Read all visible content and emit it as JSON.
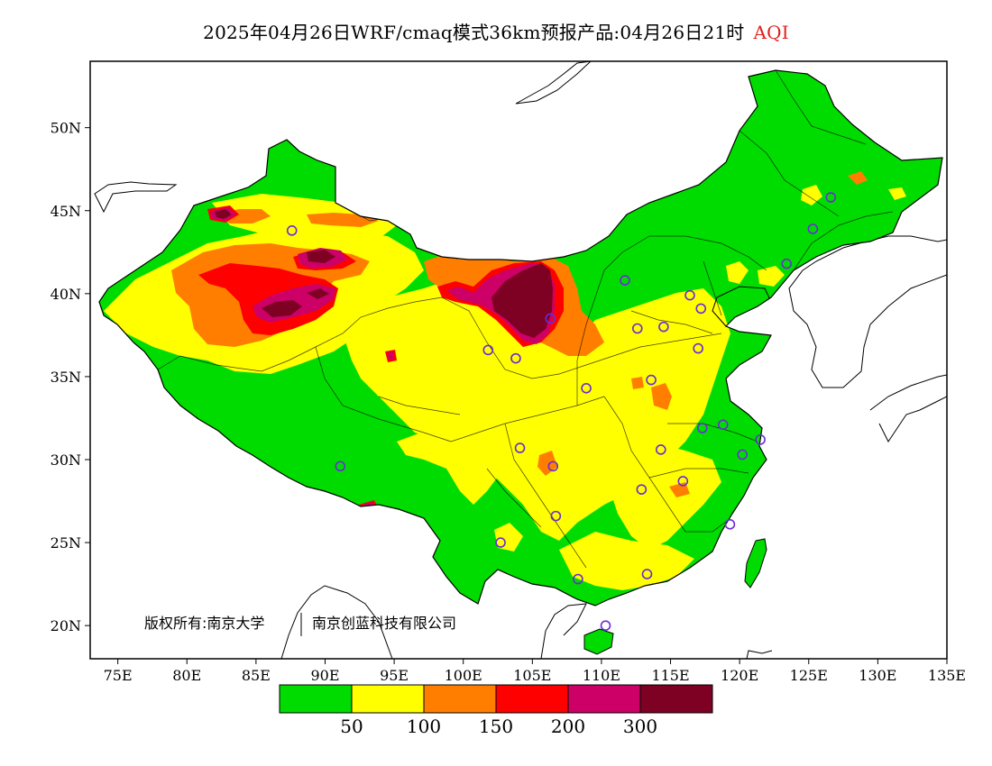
{
  "title": {
    "main": "2025年04月26日WRF/cmaq模式36km预报产品:04月26日21时",
    "variable": "AQI",
    "variable_color": "#e0201b"
  },
  "copyright": {
    "owner_a": "版权所有:南京大学",
    "owner_b": "南京创蓝科技有限公司"
  },
  "axes": {
    "lon_ticks": [
      "75E",
      "80E",
      "85E",
      "90E",
      "95E",
      "100E",
      "105E",
      "110E",
      "115E",
      "120E",
      "125E",
      "130E",
      "135E"
    ],
    "lat_ticks": [
      "20N",
      "25N",
      "30N",
      "35N",
      "40N",
      "45N",
      "50N"
    ],
    "lon_range": [
      73,
      135
    ],
    "lat_range": [
      18,
      54
    ]
  },
  "colorbar": {
    "colors": [
      "#00dc00",
      "#ffff00",
      "#ff7e00",
      "#ff0000",
      "#cc0066",
      "#7e0023"
    ],
    "labels": [
      "50",
      "100",
      "150",
      "200",
      "300"
    ]
  },
  "stations": [
    [
      87.6,
      43.8
    ],
    [
      91.1,
      29.6
    ],
    [
      101.8,
      36.6
    ],
    [
      103.8,
      36.1
    ],
    [
      106.3,
      38.5
    ],
    [
      111.7,
      40.8
    ],
    [
      112.6,
      37.9
    ],
    [
      114.5,
      38.0
    ],
    [
      116.4,
      39.9
    ],
    [
      117.2,
      39.1
    ],
    [
      117.0,
      36.7
    ],
    [
      113.6,
      34.8
    ],
    [
      108.9,
      34.3
    ],
    [
      117.3,
      31.9
    ],
    [
      118.8,
      32.1
    ],
    [
      120.2,
      30.3
    ],
    [
      121.5,
      31.2
    ],
    [
      114.3,
      30.6
    ],
    [
      112.9,
      28.2
    ],
    [
      115.9,
      28.7
    ],
    [
      119.3,
      26.1
    ],
    [
      113.3,
      23.1
    ],
    [
      108.3,
      22.8
    ],
    [
      110.3,
      20.0
    ],
    [
      106.7,
      26.6
    ],
    [
      102.7,
      25.0
    ],
    [
      104.1,
      30.7
    ],
    [
      106.5,
      29.6
    ],
    [
      126.6,
      45.8
    ],
    [
      125.3,
      43.9
    ],
    [
      123.4,
      41.8
    ]
  ]
}
